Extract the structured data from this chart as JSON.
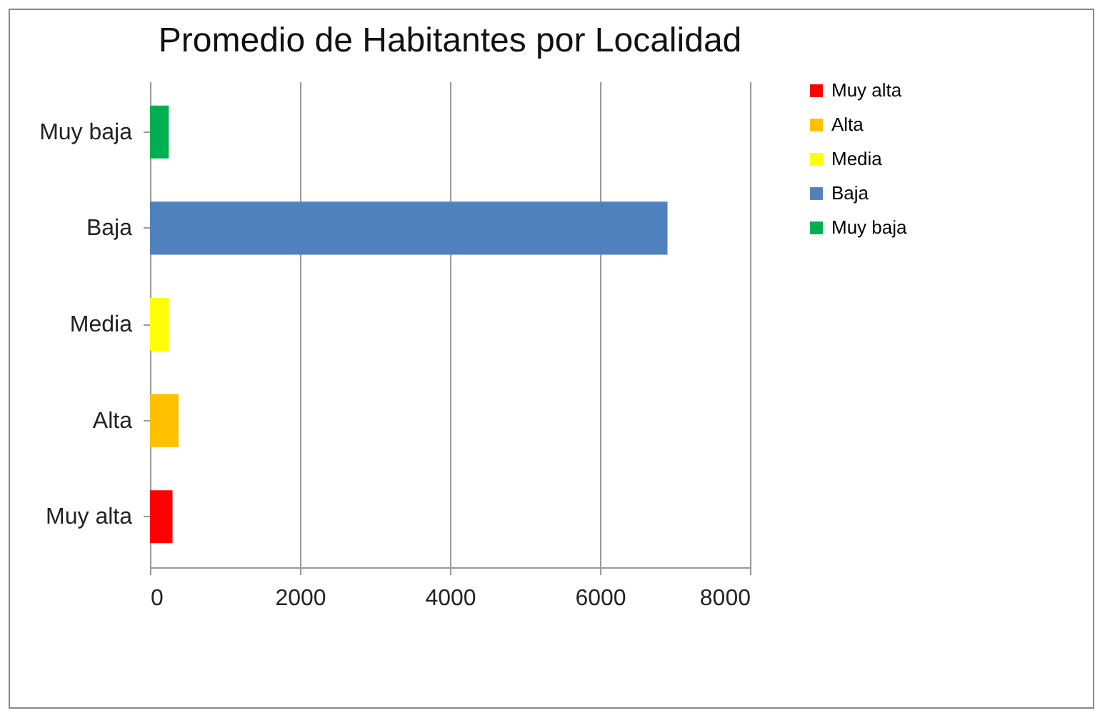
{
  "chart_data": {
    "type": "bar",
    "orientation": "horizontal",
    "title": "Promedio de Habitantes por Localidad",
    "categories": [
      "Muy baja",
      "Baja",
      "Media",
      "Alta",
      "Muy alta"
    ],
    "series": [
      {
        "name": "Muy alta",
        "color": "#ff0000",
        "values": [
          null,
          null,
          null,
          null,
          300
        ]
      },
      {
        "name": "Alta",
        "color": "#ffc000",
        "values": [
          null,
          null,
          null,
          380,
          null
        ]
      },
      {
        "name": "Media",
        "color": "#ffff00",
        "values": [
          null,
          null,
          250,
          null,
          null
        ]
      },
      {
        "name": "Baja",
        "color": "#4f81bd",
        "values": [
          null,
          6900,
          null,
          null,
          null
        ]
      },
      {
        "name": "Muy baja",
        "color": "#00b050",
        "values": [
          250,
          null,
          null,
          null,
          null
        ]
      }
    ],
    "xlim": [
      0,
      8000
    ],
    "xticks": [
      0,
      2000,
      4000,
      6000,
      8000
    ],
    "grid": "x",
    "legend": "right"
  }
}
